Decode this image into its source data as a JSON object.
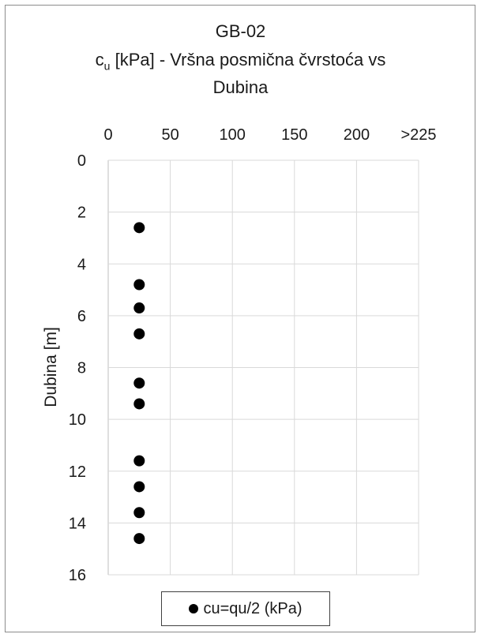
{
  "chart_data": {
    "type": "scatter",
    "title_line1": "GB-02",
    "title_line2_prefix": "c",
    "title_line2_subscript": "u",
    "title_line2_rest": " [kPa] - Vršna posmična čvrstoća vs",
    "title_line3": "Dubina",
    "xlabel": "",
    "ylabel": "Dubina [m]",
    "x_tick_labels": [
      "0",
      "50",
      "100",
      "150",
      "200",
      ">225"
    ],
    "x_tick_values": [
      0,
      50,
      100,
      150,
      200,
      250
    ],
    "xlim": [
      0,
      250
    ],
    "y_tick_labels": [
      "0",
      "2",
      "4",
      "6",
      "8",
      "10",
      "12",
      "14",
      "16"
    ],
    "y_tick_values": [
      0,
      2,
      4,
      6,
      8,
      10,
      12,
      14,
      16
    ],
    "ylim": [
      0,
      16
    ],
    "y_inverted": true,
    "x_axis_position": "top",
    "grid": true,
    "legend_position": "bottom",
    "series": [
      {
        "name": "cu=qu/2 (kPa)",
        "color": "#000000",
        "marker": "circle",
        "points": [
          {
            "x": 25,
            "y": 2.6
          },
          {
            "x": 25,
            "y": 4.8
          },
          {
            "x": 25,
            "y": 5.7
          },
          {
            "x": 25,
            "y": 6.7
          },
          {
            "x": 25,
            "y": 8.6
          },
          {
            "x": 25,
            "y": 9.4
          },
          {
            "x": 25,
            "y": 11.6
          },
          {
            "x": 25,
            "y": 12.6
          },
          {
            "x": 25,
            "y": 13.6
          },
          {
            "x": 25,
            "y": 14.6
          }
        ]
      }
    ]
  }
}
